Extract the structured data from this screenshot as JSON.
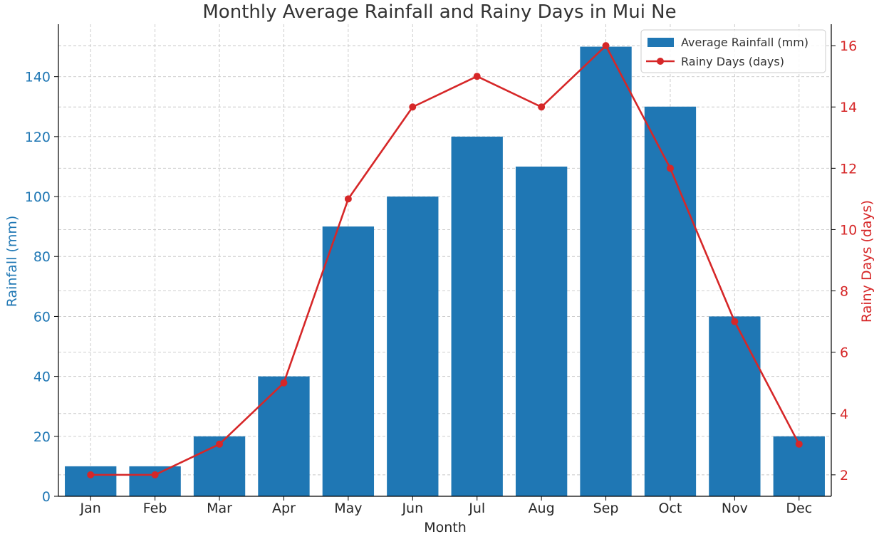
{
  "chart_data": {
    "type": "bar",
    "title": "Monthly Average Rainfall and Rainy Days in Mui Ne",
    "xlabel": "Month",
    "ylabel": "Rainfall (mm)",
    "y2label": "Rainy Days (days)",
    "categories": [
      "Jan",
      "Feb",
      "Mar",
      "Apr",
      "May",
      "Jun",
      "Jul",
      "Aug",
      "Sep",
      "Oct",
      "Nov",
      "Dec"
    ],
    "series": [
      {
        "name": "Average Rainfall (mm)",
        "type": "bar",
        "axis": "left",
        "color": "#1f77b4",
        "values": [
          10,
          10,
          20,
          40,
          90,
          100,
          120,
          110,
          150,
          130,
          60,
          20
        ]
      },
      {
        "name": "Rainy Days (days)",
        "type": "line",
        "axis": "right",
        "color": "#d62728",
        "values": [
          2,
          2,
          3,
          5,
          11,
          14,
          15,
          14,
          16,
          12,
          7,
          3
        ]
      }
    ],
    "ylim": [
      0,
      157.5
    ],
    "y2lim": [
      1.3,
      16.7
    ],
    "yticks": [
      0,
      20,
      40,
      60,
      80,
      100,
      120,
      140
    ],
    "y2ticks": [
      2,
      4,
      6,
      8,
      10,
      12,
      14,
      16
    ],
    "grid": true,
    "legend_position": "top-right",
    "colors": {
      "left_axis": "#1f77b4",
      "right_axis": "#d62728",
      "grid": "#c8c8c8",
      "text": "#262626"
    }
  }
}
